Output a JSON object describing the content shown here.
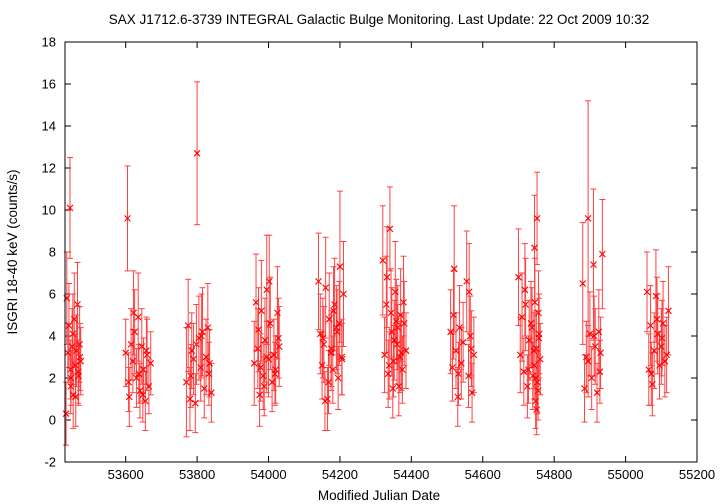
{
  "chart_data": {
    "type": "scatter",
    "title": "SAX J1712.6-3739   INTEGRAL Galactic Bulge Monitoring.  Last Update: 22 Oct 2009 10:32",
    "xlabel": "Modified Julian Date",
    "ylabel": "ISGRI 18-40 keV (counts/s)",
    "xlim": [
      53430,
      55200
    ],
    "ylim": [
      -2,
      18
    ],
    "xticks": [
      53600,
      53800,
      54000,
      54200,
      54400,
      54600,
      54800,
      55000,
      55200
    ],
    "yticks": [
      -2,
      0,
      2,
      4,
      6,
      8,
      10,
      12,
      14,
      16,
      18
    ],
    "grid": false,
    "marker": "x",
    "color": "#ff0000",
    "errorbar_color": "#ff4040",
    "series": [
      {
        "x": [
          53435,
          53438,
          53441,
          53444,
          53447,
          53450,
          53453,
          53456,
          53459,
          53462,
          53465,
          53468,
          53471,
          53474,
          53433,
          53446,
          53452,
          53460,
          53467,
          53472,
          53445,
          53600,
          53605,
          53610,
          53615,
          53620,
          53625,
          53630,
          53635,
          53640,
          53645,
          53650,
          53655,
          53660,
          53665,
          53670,
          53622,
          53637,
          53648,
          53658,
          53608,
          53770,
          53775,
          53780,
          53785,
          53790,
          53795,
          53800,
          53805,
          53810,
          53815,
          53820,
          53825,
          53830,
          53835,
          53840,
          53782,
          53798,
          53812,
          53833,
          53960,
          53965,
          53970,
          53975,
          53980,
          53985,
          53990,
          53995,
          54000,
          54005,
          54010,
          54015,
          54020,
          54025,
          54030,
          53972,
          53988,
          54002,
          54018,
          54028,
          53978,
          53995,
          54140,
          54145,
          54150,
          54155,
          54160,
          54165,
          54170,
          54175,
          54180,
          54185,
          54190,
          54195,
          54200,
          54205,
          54210,
          54152,
          54168,
          54182,
          54198,
          54206,
          54158,
          54176,
          54192,
          54320,
          54325,
          54330,
          54335,
          54340,
          54345,
          54350,
          54355,
          54360,
          54365,
          54370,
          54375,
          54380,
          54385,
          54332,
          54348,
          54358,
          54368,
          54378,
          54338,
          54352,
          54362,
          54372,
          54343,
          54510,
          54515,
          54520,
          54525,
          54530,
          54535,
          54540,
          54545,
          54555,
          54560,
          54565,
          54570,
          54575,
          54518,
          54532,
          54562,
          54568,
          54700,
          54705,
          54710,
          54715,
          54720,
          54725,
          54730,
          54735,
          54740,
          54743,
          54746,
          54749,
          54752,
          54755,
          54758,
          54761,
          54745,
          54748,
          54750,
          54753,
          54756,
          54744,
          54751,
          54757,
          54718,
          54728,
          54738,
          54880,
          54885,
          54890,
          54895,
          54900,
          54905,
          54910,
          54915,
          54920,
          54925,
          54930,
          54935,
          54895,
          54912,
          54928,
          55060,
          55065,
          55070,
          55075,
          55080,
          55085,
          55090,
          55095,
          55100,
          55105,
          55110,
          55115,
          55120,
          55072,
          55088,
          55102
        ],
        "y": [
          5.8,
          3.2,
          4.5,
          10.1,
          2.0,
          3.5,
          1.2,
          4.8,
          2.6,
          3.3,
          5.5,
          2.1,
          3.6,
          2.8,
          0.3,
          1.6,
          4.1,
          1.1,
          2.3,
          3.0,
          2.4,
          3.2,
          9.6,
          1.1,
          3.6,
          2.8,
          4.2,
          2.0,
          4.9,
          1.4,
          3.5,
          2.4,
          0.9,
          3.1,
          1.6,
          2.7,
          5.1,
          2.2,
          1.2,
          3.3,
          1.8,
          1.8,
          4.5,
          1.0,
          3.3,
          2.9,
          0.8,
          12.7,
          3.9,
          2.5,
          4.2,
          1.5,
          3.0,
          4.4,
          2.7,
          1.3,
          2.1,
          3.6,
          4.0,
          2.2,
          2.7,
          5.6,
          3.4,
          1.2,
          5.2,
          2.1,
          3.8,
          6.2,
          2.9,
          4.6,
          1.8,
          3.1,
          2.4,
          5.1,
          3.5,
          4.3,
          1.6,
          6.6,
          2.2,
          3.9,
          2.5,
          3.0,
          6.6,
          4.1,
          2.6,
          3.6,
          6.3,
          1.0,
          4.8,
          3.2,
          2.4,
          5.5,
          4.4,
          2.0,
          7.3,
          3.0,
          6.0,
          3.9,
          1.8,
          5.2,
          4.6,
          2.9,
          0.9,
          3.4,
          4.2,
          7.6,
          3.1,
          5.5,
          2.2,
          9.1,
          4.2,
          2.8,
          6.1,
          3.6,
          1.6,
          5.0,
          2.4,
          4.6,
          3.3,
          6.8,
          1.5,
          4.7,
          3.0,
          5.6,
          2.6,
          3.8,
          4.4,
          3.2,
          5.1,
          4.2,
          2.5,
          7.2,
          3.3,
          1.1,
          4.4,
          2.7,
          3.7,
          6.6,
          2.1,
          4.0,
          1.3,
          3.1,
          5.0,
          2.2,
          6.1,
          3.4,
          6.8,
          3.1,
          4.9,
          2.3,
          5.5,
          1.6,
          3.8,
          4.6,
          2.1,
          3.3,
          5.6,
          2.0,
          9.6,
          1.4,
          4.1,
          2.9,
          8.2,
          0.9,
          3.4,
          1.8,
          5.1,
          2.6,
          0.5,
          3.9,
          6.2,
          2.4,
          4.4,
          6.5,
          1.5,
          3.0,
          9.6,
          4.1,
          2.0,
          7.4,
          3.5,
          1.3,
          4.2,
          3.2,
          7.9,
          2.8,
          4.0,
          2.3,
          6.1,
          2.4,
          4.5,
          1.7,
          3.3,
          5.9,
          4.1,
          2.6,
          3.5,
          4.6,
          2.8,
          3.1,
          5.2,
          2.2,
          4.8,
          3.9
        ],
        "err": [
          2.2,
          1.4,
          2.0,
          2.4,
          1.3,
          1.8,
          1.6,
          2.2,
          1.5,
          1.7,
          2.0,
          1.4,
          1.8,
          1.6,
          1.5,
          1.3,
          1.9,
          1.4,
          1.5,
          1.6,
          1.4,
          1.6,
          2.5,
          1.4,
          1.7,
          1.5,
          2.0,
          1.4,
          2.1,
          1.3,
          1.8,
          1.5,
          1.4,
          1.7,
          1.3,
          1.5,
          2.0,
          1.4,
          1.3,
          1.6,
          1.4,
          2.6,
          2.2,
          1.5,
          1.8,
          1.7,
          1.4,
          3.4,
          2.0,
          1.6,
          2.1,
          1.4,
          1.8,
          2.1,
          1.6,
          1.4,
          1.5,
          1.9,
          2.0,
          1.5,
          2.0,
          2.3,
          1.9,
          1.5,
          2.4,
          1.6,
          2.0,
          2.6,
          1.8,
          2.2,
          1.4,
          1.7,
          1.6,
          2.2,
          1.9,
          2.0,
          1.4,
          2.2,
          1.5,
          1.9,
          1.6,
          1.7,
          2.3,
          1.9,
          1.6,
          1.8,
          2.4,
          1.5,
          2.2,
          1.8,
          1.6,
          2.2,
          2.0,
          1.5,
          3.6,
          1.8,
          2.5,
          1.9,
          1.5,
          2.1,
          2.0,
          1.7,
          1.4,
          1.8,
          2.0,
          2.6,
          1.8,
          2.3,
          1.6,
          2.0,
          2.1,
          1.7,
          2.4,
          1.9,
          1.4,
          2.2,
          1.6,
          2.0,
          1.8,
          2.4,
          1.4,
          2.0,
          1.7,
          2.2,
          1.6,
          1.9,
          2.0,
          1.8,
          2.1,
          2.0,
          1.6,
          3.0,
          1.8,
          1.4,
          2.0,
          1.7,
          1.9,
          2.4,
          1.5,
          1.9,
          1.4,
          1.8,
          2.1,
          1.5,
          2.3,
          1.8,
          2.3,
          1.8,
          2.1,
          1.6,
          2.2,
          1.5,
          1.9,
          2.0,
          1.6,
          1.8,
          2.1,
          1.5,
          2.2,
          1.4,
          1.9,
          1.7,
          2.5,
          1.3,
          1.8,
          1.5,
          2.0,
          1.6,
          1.2,
          1.9,
          2.2,
          1.6,
          1.9,
          2.9,
          1.6,
          1.7,
          5.6,
          2.0,
          1.5,
          3.6,
          1.8,
          1.4,
          2.0,
          1.7,
          2.6,
          1.7,
          1.9,
          1.5,
          1.9,
          1.7,
          1.9,
          1.5,
          1.8,
          2.2,
          1.9,
          1.6,
          1.8,
          2.0,
          1.7,
          1.8,
          2.1,
          1.5,
          2.0,
          1.8
        ]
      }
    ]
  }
}
